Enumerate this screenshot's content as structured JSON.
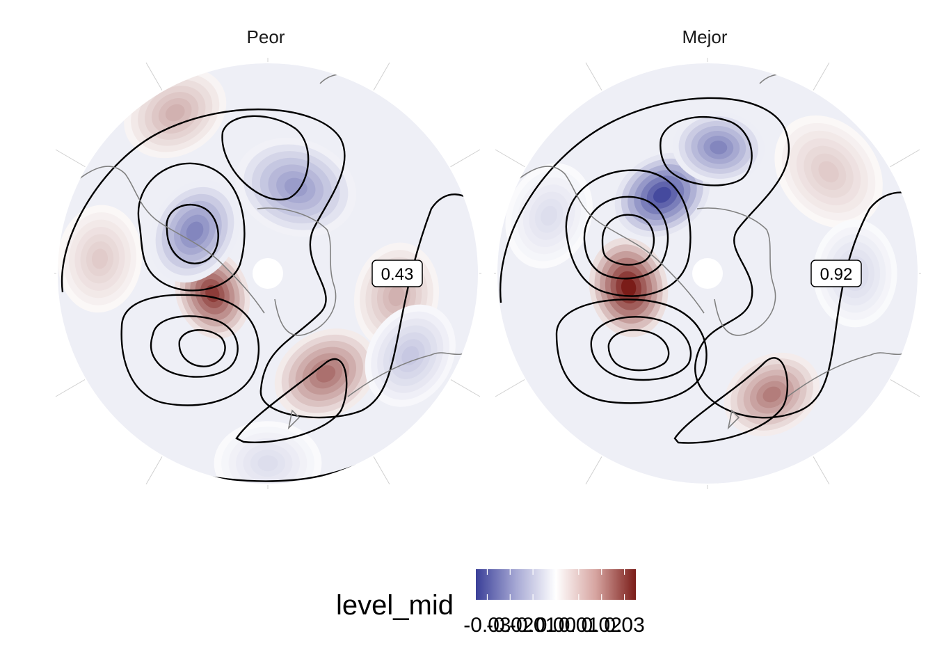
{
  "chart_data": {
    "type": "heatmap",
    "description_kind": "polar stereographic filled contour maps with line contours",
    "panels": [
      {
        "title": "Peor",
        "correlation_label": "0.43",
        "anomalies": [
          {
            "angle_deg": 200,
            "r": 0.28,
            "value": 0.03,
            "spread": 0.12
          },
          {
            "angle_deg": 150,
            "r": 0.4,
            "value": -0.022,
            "spread": 0.14
          },
          {
            "angle_deg": 72,
            "r": 0.43,
            "value": -0.018,
            "spread": 0.16
          },
          {
            "angle_deg": 120,
            "r": 0.88,
            "value": 0.012,
            "spread": 0.14
          },
          {
            "angle_deg": 300,
            "r": 0.55,
            "value": 0.022,
            "spread": 0.14
          },
          {
            "angle_deg": 350,
            "r": 0.62,
            "value": 0.012,
            "spread": 0.14
          },
          {
            "angle_deg": 330,
            "r": 0.78,
            "value": -0.01,
            "spread": 0.14
          },
          {
            "angle_deg": 175,
            "r": 0.8,
            "value": 0.008,
            "spread": 0.14
          },
          {
            "angle_deg": 270,
            "r": 0.9,
            "value": -0.006,
            "spread": 0.14
          }
        ]
      },
      {
        "title": "Mejor",
        "correlation_label": "0.92",
        "anomalies": [
          {
            "angle_deg": 190,
            "r": 0.38,
            "value": 0.035,
            "spread": 0.13
          },
          {
            "angle_deg": 120,
            "r": 0.43,
            "value": -0.033,
            "spread": 0.13
          },
          {
            "angle_deg": 85,
            "r": 0.6,
            "value": -0.022,
            "spread": 0.12
          },
          {
            "angle_deg": 298,
            "r": 0.65,
            "value": 0.02,
            "spread": 0.13
          },
          {
            "angle_deg": 40,
            "r": 0.75,
            "value": 0.008,
            "spread": 0.16
          },
          {
            "angle_deg": 0,
            "r": 0.7,
            "value": -0.007,
            "spread": 0.14
          },
          {
            "angle_deg": 160,
            "r": 0.8,
            "value": -0.006,
            "spread": 0.14
          }
        ]
      }
    ],
    "colorbar": {
      "title": "level_mid",
      "tick_labels": [
        "-0.03",
        "-0.02",
        "-0.01",
        "0.00",
        "0.01",
        "0.02",
        "0.03"
      ],
      "range": [
        -0.035,
        0.035
      ],
      "colors": {
        "low": "#3a3f98",
        "mid": "#ffffff",
        "high": "#7a1c18"
      }
    },
    "grid": true,
    "legend_position": "bottom"
  }
}
